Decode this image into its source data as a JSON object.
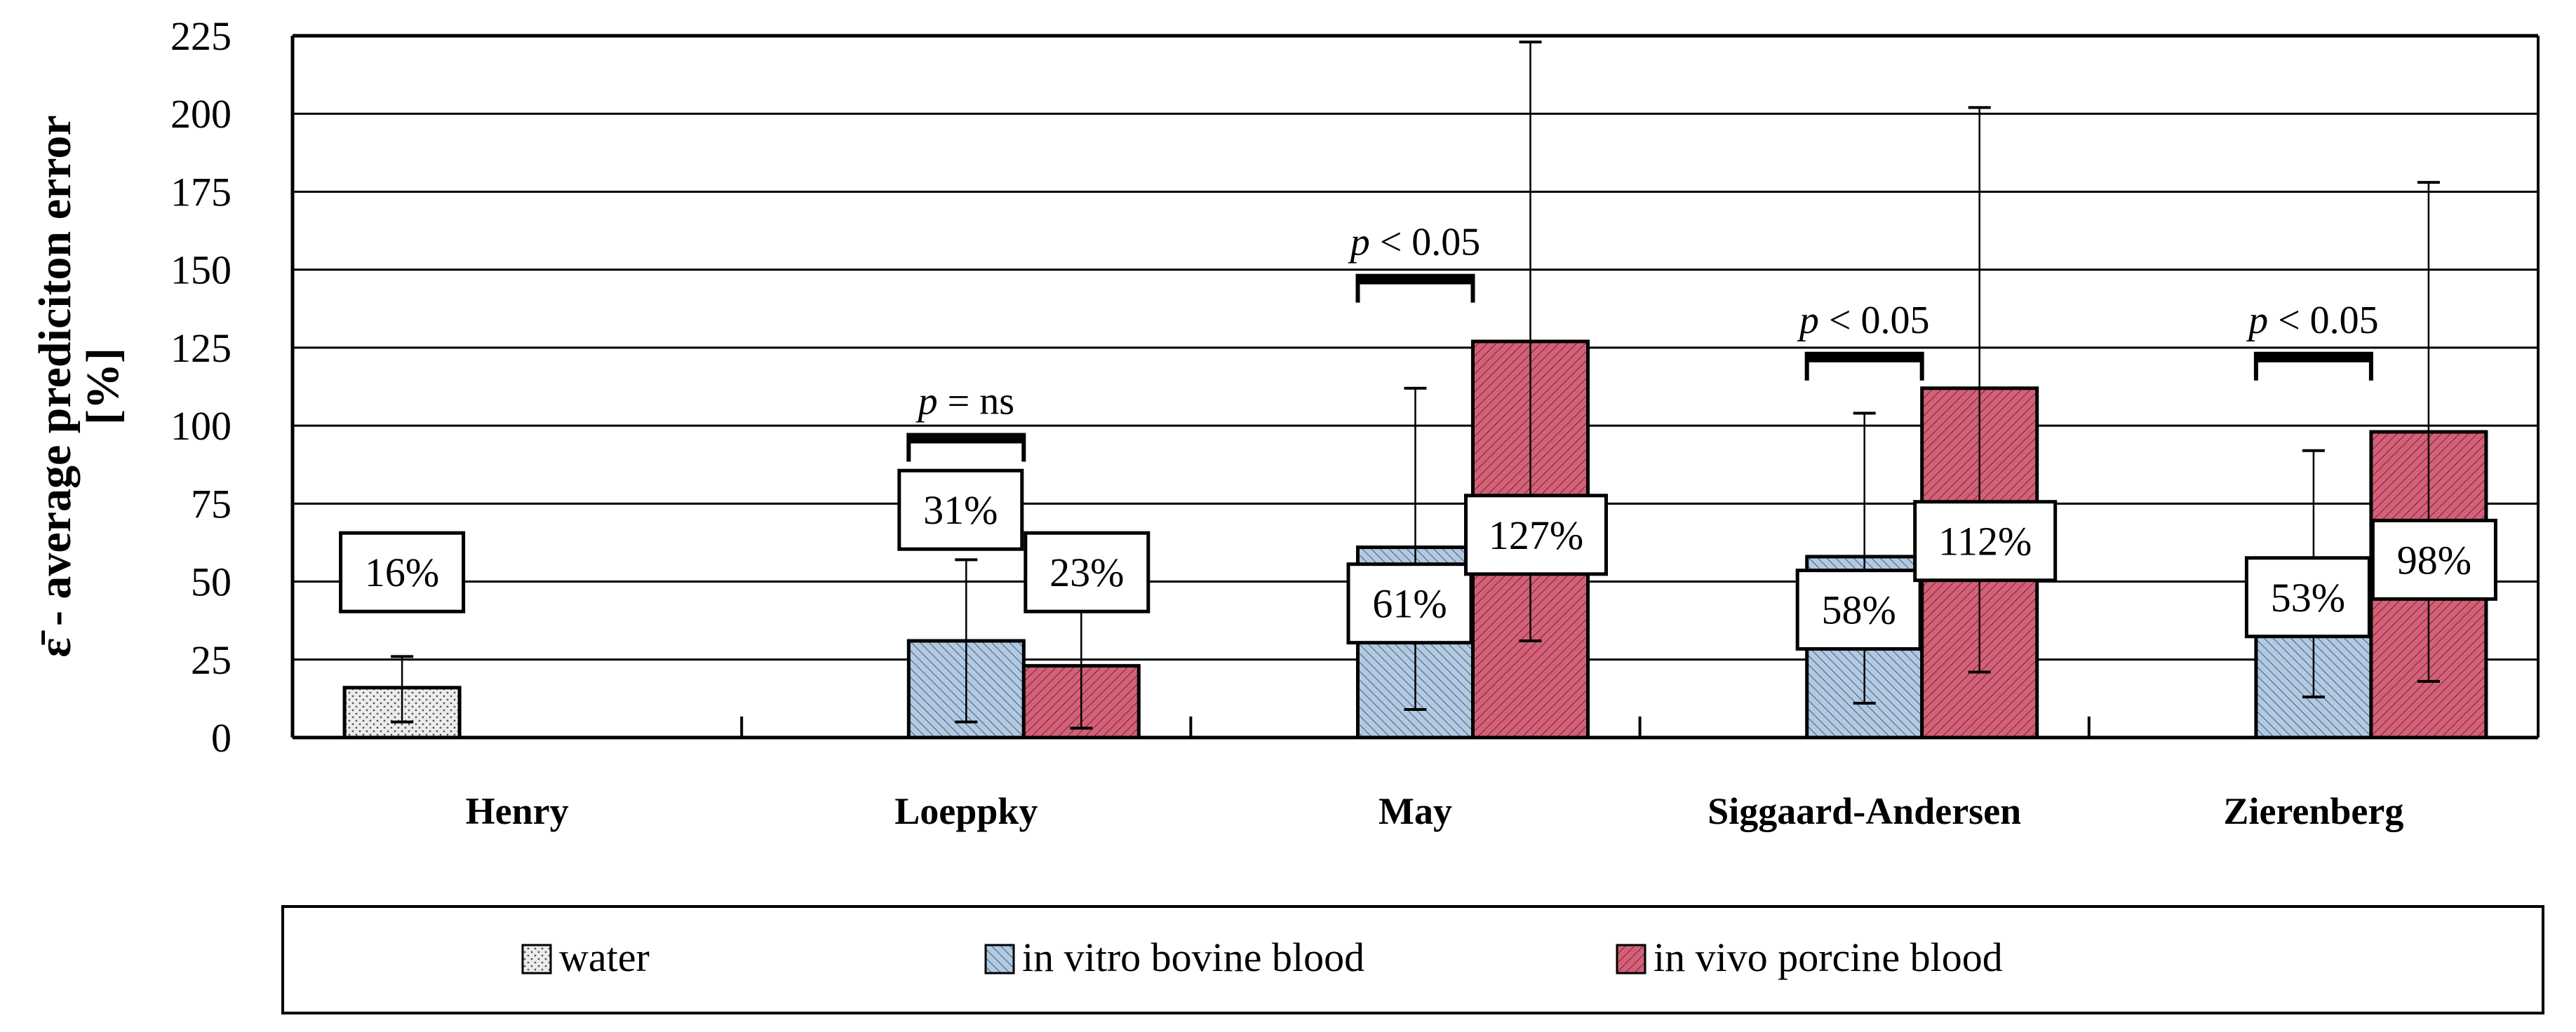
{
  "chart_data": {
    "type": "bar",
    "title": "",
    "ylabel_line1": "ε̄ - average prediciton error",
    "ylabel_line2": "[%]",
    "xlabel": "",
    "ylim": [
      0,
      225
    ],
    "yticks": [
      0,
      25,
      50,
      75,
      100,
      125,
      150,
      175,
      200,
      225
    ],
    "grid": true,
    "legend_placement": "bottom",
    "categories": [
      "Henry",
      "Loeppky",
      "May",
      "Siggaard-Andersen",
      "Zierenberg"
    ],
    "series": [
      {
        "name": "water",
        "color": "#e8e8e8",
        "pattern": "dots",
        "values": [
          16,
          null,
          null,
          null,
          null
        ],
        "labels": [
          "16%",
          null,
          null,
          null,
          null
        ],
        "err_low": [
          5,
          null,
          null,
          null,
          null
        ],
        "err_high": [
          26,
          null,
          null,
          null,
          null
        ]
      },
      {
        "name": "in vitro bovine blood",
        "color": "#a9c1da",
        "pattern": "hatch",
        "values": [
          null,
          31,
          61,
          58,
          53
        ],
        "labels": [
          null,
          "31%",
          "61%",
          "58%",
          "53%"
        ],
        "err_low": [
          null,
          5,
          9,
          11,
          13
        ],
        "err_high": [
          null,
          57,
          112,
          104,
          92
        ]
      },
      {
        "name": "in vivo porcine blood",
        "color": "#c9506b",
        "pattern": "hatch",
        "values": [
          null,
          23,
          127,
          112,
          98
        ],
        "labels": [
          null,
          "23%",
          "127%",
          "112%",
          "98%"
        ],
        "err_low": [
          null,
          3,
          31,
          21,
          18
        ],
        "err_high": [
          null,
          42,
          223,
          202,
          178
        ]
      }
    ],
    "annotations": [
      {
        "category": "Loeppky",
        "p": "p",
        "text": " = ns"
      },
      {
        "category": "May",
        "p": "p",
        "text": " < 0.05"
      },
      {
        "category": "Siggaard-Andersen",
        "p": "p",
        "text": " < 0.05"
      },
      {
        "category": "Zierenberg",
        "p": "p",
        "text": " < 0.05"
      }
    ]
  }
}
